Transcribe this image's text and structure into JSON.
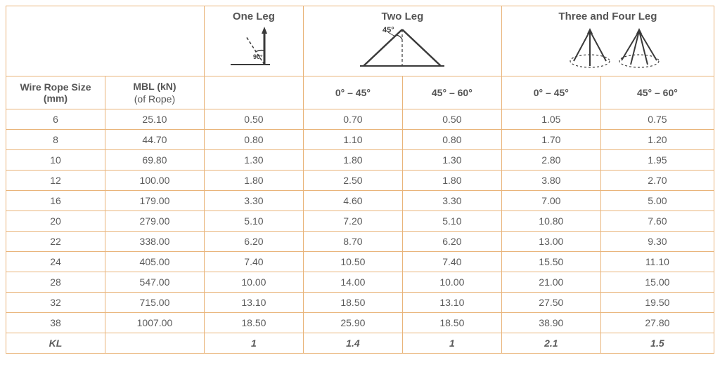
{
  "headers": {
    "one_leg": "One Leg",
    "two_leg": "Two Leg",
    "three_four_leg": "Three and Four Leg",
    "wire_rope_size": "Wire Rope Size (mm)",
    "mbl": "MBL (kN)",
    "mbl_sub": "(of Rope)",
    "r0_45": "0° – 45°",
    "r45_60": "45° – 60°"
  },
  "table": {
    "columns": [
      "size",
      "mbl",
      "one",
      "two_a",
      "two_b",
      "tf_a",
      "tf_b"
    ],
    "col_widths_pct": [
      14,
      14,
      14,
      14,
      14,
      14,
      16
    ],
    "rows": [
      [
        "6",
        "25.10",
        "0.50",
        "0.70",
        "0.50",
        "1.05",
        "0.75"
      ],
      [
        "8",
        "44.70",
        "0.80",
        "1.10",
        "0.80",
        "1.70",
        "1.20"
      ],
      [
        "10",
        "69.80",
        "1.30",
        "1.80",
        "1.30",
        "2.80",
        "1.95"
      ],
      [
        "12",
        "100.00",
        "1.80",
        "2.50",
        "1.80",
        "3.80",
        "2.70"
      ],
      [
        "16",
        "179.00",
        "3.30",
        "4.60",
        "3.30",
        "7.00",
        "5.00"
      ],
      [
        "20",
        "279.00",
        "5.10",
        "7.20",
        "5.10",
        "10.80",
        "7.60"
      ],
      [
        "22",
        "338.00",
        "6.20",
        "8.70",
        "6.20",
        "13.00",
        "9.30"
      ],
      [
        "24",
        "405.00",
        "7.40",
        "10.50",
        "7.40",
        "15.50",
        "11.10"
      ],
      [
        "28",
        "547.00",
        "10.00",
        "14.00",
        "10.00",
        "21.00",
        "15.00"
      ],
      [
        "32",
        "715.00",
        "13.10",
        "18.50",
        "13.10",
        "27.50",
        "19.50"
      ],
      [
        "38",
        "1007.00",
        "18.50",
        "25.90",
        "18.50",
        "38.90",
        "27.80"
      ]
    ],
    "kl_row": [
      "KL",
      "",
      "1",
      "1.4",
      "1",
      "2.1",
      "1.5"
    ]
  },
  "style": {
    "border_color": "#e9b47a",
    "text_color": "#5b5b5b",
    "header_fontsize": 15,
    "cell_fontsize": 14,
    "diagram_stroke": "#3a3a3a",
    "diagram_stroke_width": 2
  },
  "diagrams": {
    "one_leg_angle_label": "90°",
    "two_leg_angle_label": "45°"
  }
}
